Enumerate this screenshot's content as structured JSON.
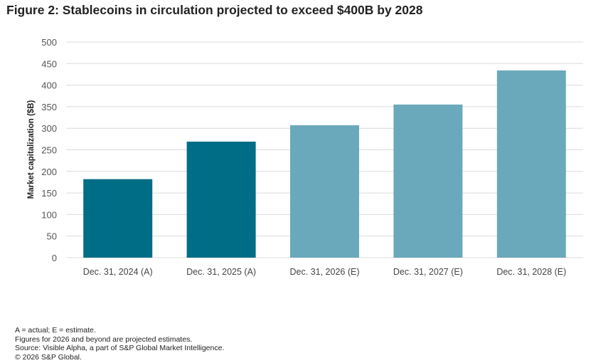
{
  "title": "Figure 2: Stablecoins in circulation projected to exceed $400B by 2028",
  "chart_data": {
    "type": "bar",
    "title": "Figure 2: Stablecoins in circulation projected to exceed $400B by 2028",
    "xlabel": "",
    "ylabel": "Market capitalization ($B)",
    "categories": [
      "Dec. 31, 2024 (A)",
      "Dec. 31, 2025 (A)",
      "Dec. 31, 2026 (E)",
      "Dec. 31, 2027 (E)",
      "Dec. 31, 2028 (E)"
    ],
    "values": [
      182,
      269,
      307,
      355,
      434
    ],
    "bar_colors": [
      "#006d87",
      "#006d87",
      "#6aa9bb",
      "#6aa9bb",
      "#6aa9bb"
    ],
    "ylim": [
      0,
      500
    ],
    "yticks": [
      0,
      50,
      100,
      150,
      200,
      250,
      300,
      350,
      400,
      450,
      500
    ],
    "grid": true,
    "legend": "none"
  },
  "notes": [
    "A = actual; E = estimate.",
    "Figures for 2026 and beyond are projected estimates.",
    "Source: Visible Alpha, a part of S&P Global Market Intelligence.",
    "© 2026 S&P Global."
  ]
}
